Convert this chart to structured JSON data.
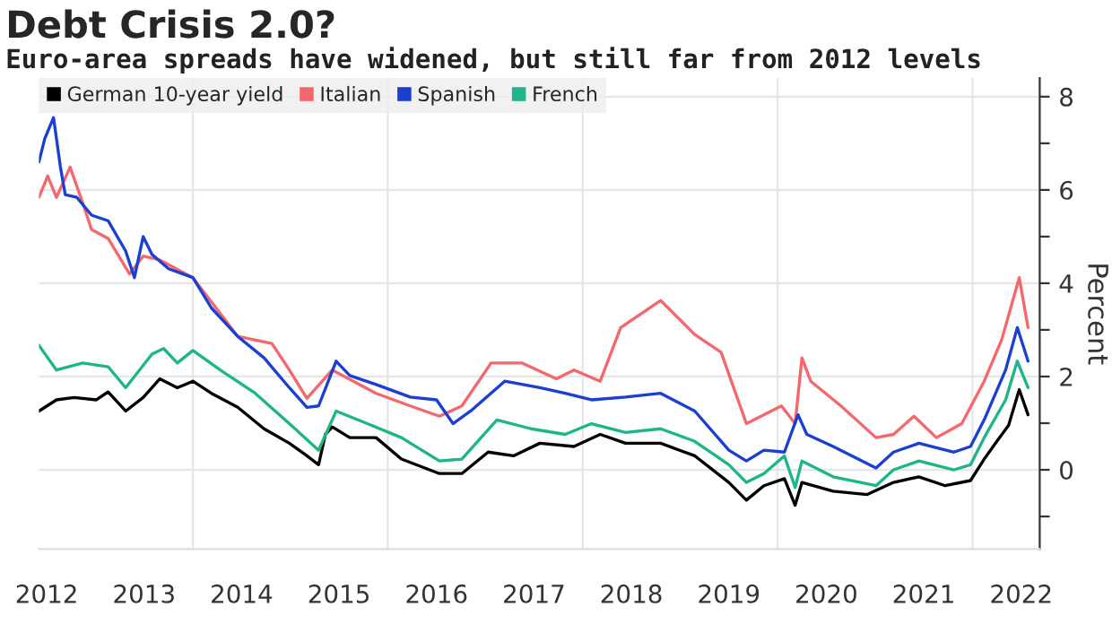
{
  "chart_data": {
    "type": "line",
    "title": "Debt Crisis 2.0?",
    "subtitle": "Euro-area spreads have widened, but still far from 2012 levels",
    "ylabel": "Percent",
    "series": [
      {
        "name": "German 10-year yield",
        "color": "#000000",
        "x": [
          2012.42,
          2012.6,
          2012.78,
          2013.01,
          2013.13,
          2013.31,
          2013.49,
          2013.66,
          2013.84,
          2014.0,
          2014.19,
          2014.46,
          2014.73,
          2014.99,
          2015.17,
          2015.29,
          2015.36,
          2015.43,
          2015.61,
          2015.88,
          2016.14,
          2016.53,
          2016.76,
          2017.03,
          2017.29,
          2017.56,
          2017.91,
          2018.18,
          2018.44,
          2018.8,
          2019.15,
          2019.5,
          2019.68,
          2019.86,
          2020.07,
          2020.18,
          2020.25,
          2020.57,
          2020.92,
          2021.19,
          2021.45,
          2021.72,
          2021.98,
          2022.12,
          2022.25,
          2022.37,
          2022.48,
          2022.57
        ],
        "values": [
          1.26,
          1.5,
          1.55,
          1.5,
          1.67,
          1.26,
          1.55,
          1.95,
          1.76,
          1.9,
          1.64,
          1.34,
          0.88,
          0.57,
          0.3,
          0.11,
          0.76,
          0.92,
          0.69,
          0.69,
          0.23,
          -0.08,
          -0.08,
          0.38,
          0.3,
          0.57,
          0.5,
          0.76,
          0.57,
          0.57,
          0.3,
          -0.27,
          -0.65,
          -0.34,
          -0.19,
          -0.76,
          -0.27,
          -0.46,
          -0.53,
          -0.27,
          -0.15,
          -0.34,
          -0.23,
          0.23,
          0.61,
          0.95,
          1.72,
          1.18
        ]
      },
      {
        "name": "Italian",
        "color": "#f2686d",
        "x": [
          2012.42,
          2012.51,
          2012.6,
          2012.74,
          2012.87,
          2012.96,
          2013.13,
          2013.35,
          2013.49,
          2013.66,
          2014.0,
          2014.46,
          2014.81,
          2014.99,
          2015.17,
          2015.43,
          2015.88,
          2016.23,
          2016.53,
          2016.76,
          2017.06,
          2017.38,
          2017.73,
          2017.91,
          2018.18,
          2018.39,
          2018.8,
          2019.15,
          2019.42,
          2019.68,
          2020.04,
          2020.18,
          2020.25,
          2020.34,
          2020.65,
          2021.01,
          2021.19,
          2021.4,
          2021.63,
          2021.89,
          2022.12,
          2022.3,
          2022.48,
          2022.57
        ],
        "values": [
          5.84,
          6.3,
          5.84,
          6.49,
          5.72,
          5.15,
          4.96,
          4.2,
          4.58,
          4.5,
          4.12,
          2.86,
          2.71,
          2.14,
          1.53,
          2.14,
          1.64,
          1.37,
          1.15,
          1.37,
          2.29,
          2.29,
          1.95,
          2.14,
          1.9,
          3.05,
          3.63,
          2.9,
          2.52,
          0.99,
          1.37,
          0.99,
          2.4,
          1.9,
          1.37,
          0.69,
          0.76,
          1.15,
          0.69,
          0.99,
          1.9,
          2.79,
          4.12,
          3.05
        ]
      },
      {
        "name": "Spanish",
        "color": "#1a3fd1",
        "x": [
          2012.42,
          2012.48,
          2012.57,
          2012.64,
          2012.69,
          2012.81,
          2012.96,
          2013.13,
          2013.31,
          2013.4,
          2013.49,
          2013.58,
          2013.75,
          2014.0,
          2014.19,
          2014.46,
          2014.73,
          2014.99,
          2015.17,
          2015.29,
          2015.47,
          2015.61,
          2015.88,
          2016.23,
          2016.5,
          2016.67,
          2016.85,
          2017.2,
          2017.56,
          2017.82,
          2018.09,
          2018.44,
          2018.8,
          2019.15,
          2019.5,
          2019.68,
          2019.86,
          2020.07,
          2020.21,
          2020.3,
          2020.57,
          2021.01,
          2021.19,
          2021.45,
          2021.81,
          2021.98,
          2022.12,
          2022.34,
          2022.46,
          2022.57
        ],
        "values": [
          6.6,
          7.1,
          7.55,
          6.5,
          5.9,
          5.84,
          5.46,
          5.34,
          4.69,
          4.12,
          5.0,
          4.62,
          4.31,
          4.12,
          3.47,
          2.86,
          2.4,
          1.76,
          1.34,
          1.37,
          2.33,
          2.02,
          1.83,
          1.56,
          1.5,
          0.99,
          1.26,
          1.9,
          1.76,
          1.64,
          1.5,
          1.56,
          1.64,
          1.26,
          0.42,
          0.19,
          0.42,
          0.38,
          1.18,
          0.76,
          0.5,
          0.04,
          0.38,
          0.57,
          0.38,
          0.5,
          1.07,
          2.14,
          3.05,
          2.33
        ]
      },
      {
        "name": "French",
        "color": "#1fb58a",
        "x": [
          2012.42,
          2012.6,
          2012.87,
          2013.13,
          2013.31,
          2013.58,
          2013.7,
          2013.84,
          2014.0,
          2014.28,
          2014.64,
          2014.99,
          2015.29,
          2015.47,
          2015.79,
          2016.14,
          2016.53,
          2016.76,
          2017.12,
          2017.47,
          2017.82,
          2018.09,
          2018.44,
          2018.8,
          2019.15,
          2019.5,
          2019.68,
          2019.86,
          2020.07,
          2020.18,
          2020.25,
          2020.57,
          2021.01,
          2021.19,
          2021.45,
          2021.81,
          2021.98,
          2022.12,
          2022.34,
          2022.46,
          2022.57
        ],
        "values": [
          2.67,
          2.14,
          2.29,
          2.21,
          1.76,
          2.48,
          2.6,
          2.29,
          2.56,
          2.14,
          1.64,
          0.99,
          0.42,
          1.26,
          0.99,
          0.69,
          0.19,
          0.23,
          1.07,
          0.88,
          0.76,
          0.99,
          0.8,
          0.88,
          0.61,
          0.11,
          -0.27,
          -0.08,
          0.3,
          -0.38,
          0.19,
          -0.15,
          -0.34,
          0.0,
          0.19,
          0.0,
          0.11,
          0.69,
          1.5,
          2.33,
          1.76
        ]
      }
    ],
    "xlim": [
      2012.42,
      2022.69
    ],
    "xticks": [
      {
        "value": 2012.5,
        "label": "2012"
      },
      {
        "value": 2013.5,
        "label": "2013"
      },
      {
        "value": 2014,
        "label": null
      },
      {
        "value": 2014.5,
        "label": "2014"
      },
      {
        "value": 2015.5,
        "label": "2015"
      },
      {
        "value": 2016,
        "label": null
      },
      {
        "value": 2016.5,
        "label": "2016"
      },
      {
        "value": 2017.5,
        "label": "2017"
      },
      {
        "value": 2018,
        "label": null
      },
      {
        "value": 2018.5,
        "label": "2018"
      },
      {
        "value": 2019.5,
        "label": "2019"
      },
      {
        "value": 2020,
        "label": null
      },
      {
        "value": 2020.5,
        "label": "2020"
      },
      {
        "value": 2021.5,
        "label": "2021"
      },
      {
        "value": 2022,
        "label": null
      },
      {
        "value": 2022.5,
        "label": "2022"
      }
    ],
    "ylim": [
      -1.7,
      8.4
    ],
    "yticks": [
      {
        "value": -1,
        "label": null
      },
      0,
      {
        "value": 1,
        "label": null
      },
      2,
      {
        "value": 3,
        "label": null
      },
      4,
      {
        "value": 5,
        "label": null
      },
      6,
      {
        "value": 7,
        "label": null
      },
      8
    ],
    "grid": true,
    "legend": "top left",
    "line_style": "solid",
    "marker": "none"
  }
}
